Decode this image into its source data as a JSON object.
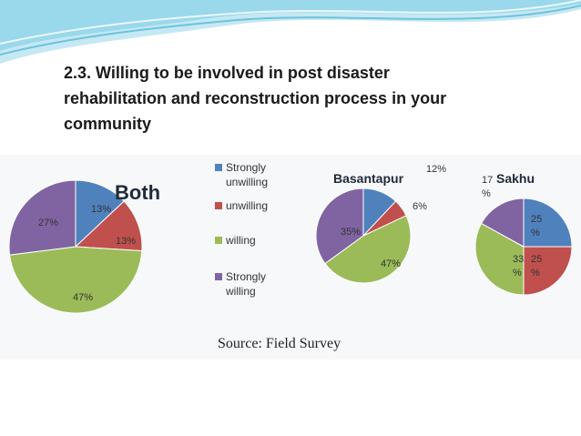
{
  "slide": {
    "title_line1": "2.3. Willing to be involved in post disaster",
    "title_line2": "rehabilitation and reconstruction process in your",
    "title_line3": "community",
    "source": "Source: Field Survey"
  },
  "colors": {
    "strongly_unwilling": "#4f81bd",
    "unwilling": "#c0504d",
    "willing": "#9bbb59",
    "strongly_willing": "#8064a2",
    "decoration": "#6cc3de"
  },
  "legend": [
    {
      "line1": "Strongly",
      "line2": "unwilling",
      "color": "#4f81bd"
    },
    {
      "line1": "unwilling",
      "line2": "",
      "color": "#c0504d"
    },
    {
      "line1": "willing",
      "line2": "",
      "color": "#9bbb59"
    },
    {
      "line1": "Strongly",
      "line2": "willing",
      "color": "#8064a2"
    }
  ],
  "chart_data": [
    {
      "type": "pie",
      "title": "Both",
      "categories": [
        "Strongly unwilling",
        "unwilling",
        "willing",
        "Strongly willing"
      ],
      "values": [
        13,
        13,
        47,
        27
      ],
      "labels": [
        [
          "13%"
        ],
        [
          "13%"
        ],
        [
          "47%"
        ],
        [
          "27%"
        ]
      ]
    },
    {
      "type": "pie",
      "title": "Basantapur",
      "categories": [
        "Strongly unwilling",
        "unwilling",
        "willing",
        "Strongly willing"
      ],
      "values": [
        12,
        6,
        47,
        35
      ],
      "labels": [
        [
          "12%"
        ],
        [
          "6%"
        ],
        [
          "47%"
        ],
        [
          "35%"
        ]
      ]
    },
    {
      "type": "pie",
      "title": "Sakhu",
      "categories": [
        "Strongly unwilling",
        "unwilling",
        "willing",
        "Strongly willing"
      ],
      "values": [
        25,
        25,
        33,
        17
      ],
      "labels": [
        [
          "25",
          "%"
        ],
        [
          "25",
          "%"
        ],
        [
          "33",
          "%"
        ],
        [
          "17",
          "%"
        ]
      ]
    }
  ]
}
